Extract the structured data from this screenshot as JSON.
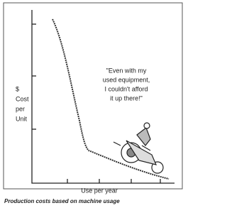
{
  "figure": {
    "y_label_lines": [
      "$",
      "Cost",
      "per",
      "Unit"
    ],
    "x_label": "Use per year",
    "quote_lines": [
      "\"Even with my",
      "used equipment,",
      "I couldn't afford",
      "it up there!\""
    ],
    "caption": "Production costs based on machine usage"
  }
}
